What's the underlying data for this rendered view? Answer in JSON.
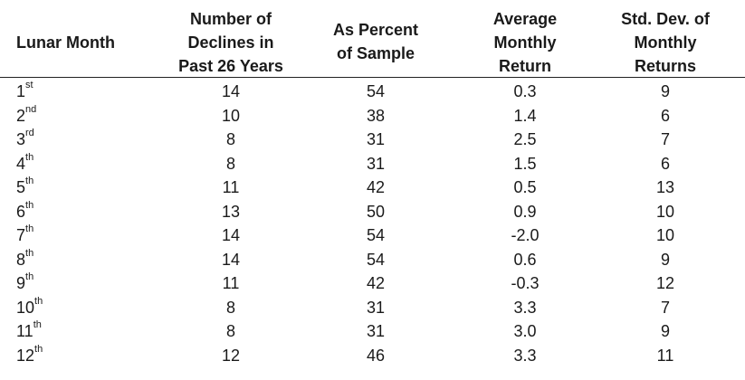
{
  "table": {
    "headers": [
      "Lunar Month",
      "Number of\nDeclines in\nPast 26 Years",
      "As Percent\nof Sample",
      "Average\nMonthly\nReturn",
      "Std. Dev. of\nMonthly\nReturns"
    ],
    "rows": [
      {
        "month_num": "1",
        "suffix": "st",
        "declines": "14",
        "percent": "54",
        "avg": "0.3",
        "std": "9"
      },
      {
        "month_num": "2",
        "suffix": "nd",
        "declines": "10",
        "percent": "38",
        "avg": "1.4",
        "std": "6"
      },
      {
        "month_num": "3",
        "suffix": "rd",
        "declines": "8",
        "percent": "31",
        "avg": "2.5",
        "std": "7"
      },
      {
        "month_num": "4",
        "suffix": "th",
        "declines": "8",
        "percent": "31",
        "avg": "1.5",
        "std": "6"
      },
      {
        "month_num": "5",
        "suffix": "th",
        "declines": "11",
        "percent": "42",
        "avg": "0.5",
        "std": "13"
      },
      {
        "month_num": "6",
        "suffix": "th",
        "declines": "13",
        "percent": "50",
        "avg": "0.9",
        "std": "10"
      },
      {
        "month_num": "7",
        "suffix": "th",
        "declines": "14",
        "percent": "54",
        "avg": "-2.0",
        "std": "10"
      },
      {
        "month_num": "8",
        "suffix": "th",
        "declines": "14",
        "percent": "54",
        "avg": "0.6",
        "std": "9"
      },
      {
        "month_num": "9",
        "suffix": "th",
        "declines": "11",
        "percent": "42",
        "avg": "-0.3",
        "std": "12"
      },
      {
        "month_num": "10",
        "suffix": "th",
        "declines": "8",
        "percent": "31",
        "avg": "3.3",
        "std": "7"
      },
      {
        "month_num": "11",
        "suffix": "th",
        "declines": "8",
        "percent": "31",
        "avg": "3.0",
        "std": "9"
      },
      {
        "month_num": "12",
        "suffix": "th",
        "declines": "12",
        "percent": "46",
        "avg": "3.3",
        "std": "11"
      }
    ]
  }
}
